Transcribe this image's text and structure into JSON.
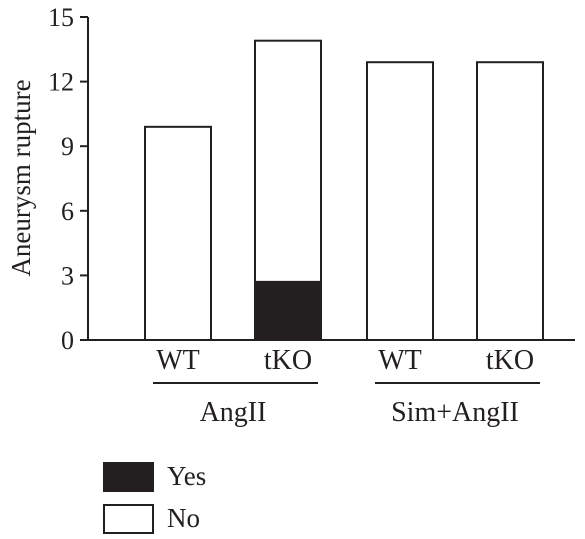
{
  "chart_data": {
    "type": "bar",
    "stacked": true,
    "title": "",
    "ylabel": "Aneurysm rupture",
    "xlabel": "",
    "ylim": [
      0,
      15
    ],
    "yticks": [
      0,
      3,
      6,
      9,
      12,
      15
    ],
    "grid": false,
    "categories": [
      "WT",
      "tKO",
      "WT",
      "tKO"
    ],
    "groups": [
      {
        "label": "AngII",
        "categories": [
          0,
          1
        ]
      },
      {
        "label": "Sim+AngII",
        "categories": [
          2,
          3
        ]
      }
    ],
    "series": [
      {
        "name": "Yes",
        "color": "#231f20",
        "values": [
          0,
          2.7,
          0,
          0
        ]
      },
      {
        "name": "No",
        "color": "#ffffff",
        "values": [
          9.9,
          11.2,
          12.9,
          12.9
        ]
      }
    ],
    "legend_position": "bottom-left"
  }
}
